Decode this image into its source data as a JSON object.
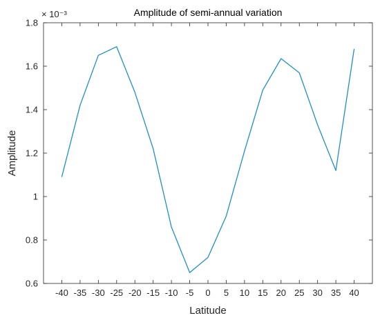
{
  "chart_data": {
    "type": "line",
    "title": "Amplitude of semi-annual variation",
    "xlabel": "Latitude",
    "ylabel": "Amplitude",
    "y_exponent_label": "× 10⁻³",
    "x": [
      -40,
      -35,
      -30,
      -25,
      -20,
      -15,
      -10,
      -5,
      0,
      5,
      10,
      15,
      20,
      25,
      30,
      35,
      40
    ],
    "series": [
      {
        "values": [
          1.09,
          1.42,
          1.65,
          1.69,
          1.48,
          1.22,
          0.86,
          0.65,
          0.72,
          0.91,
          1.21,
          1.49,
          1.635,
          1.57,
          1.33,
          1.12,
          1.68
        ],
        "color": "#1f8ec7"
      }
    ],
    "xticks": [
      -40,
      -35,
      -30,
      -25,
      -20,
      -15,
      -10,
      -5,
      0,
      5,
      10,
      15,
      20,
      25,
      30,
      35,
      40
    ],
    "xtick_labels": [
      "-40",
      "-35",
      "-30",
      "-25",
      "-20",
      "-15",
      "-10",
      "-5",
      "0",
      "5",
      "10",
      "15",
      "20",
      "25",
      "30",
      "35",
      "40"
    ],
    "yticks": [
      0.6,
      0.8,
      1.0,
      1.2,
      1.4,
      1.6,
      1.8
    ],
    "ytick_labels": [
      "0.6",
      "0.8",
      "1",
      "1.2",
      "1.4",
      "1.6",
      "1.8"
    ],
    "xlim": [
      -45,
      45
    ],
    "ylim": [
      0.6,
      1.8
    ],
    "grid": false,
    "box": true
  }
}
